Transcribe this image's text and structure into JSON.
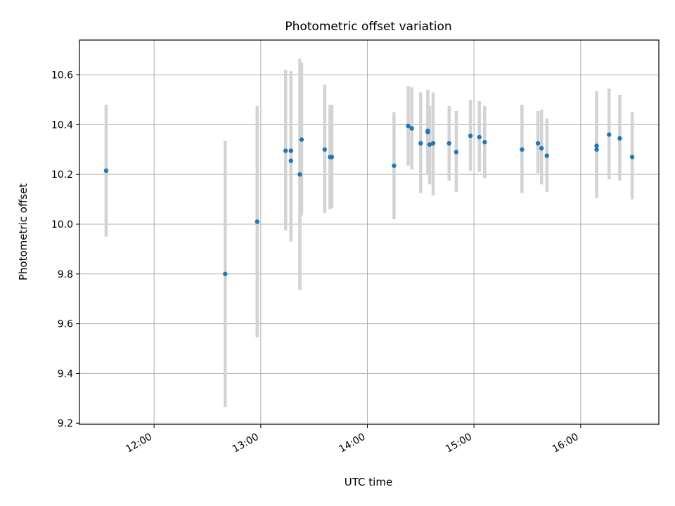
{
  "chart_data": {
    "type": "scatter",
    "title": "Photometric offset variation",
    "xlabel": "UTC time",
    "ylabel": "Photometric offset",
    "xlim": [
      "11:18",
      "16:44"
    ],
    "ylim": [
      9.195,
      10.74
    ],
    "grid": true,
    "legend": "none",
    "x_ticks": [
      "12:00",
      "13:00",
      "14:00",
      "15:00",
      "16:00"
    ],
    "y_ticks": [
      9.2,
      9.4,
      9.6,
      9.8,
      10.0,
      10.2,
      10.4,
      10.6
    ],
    "colors": {
      "marker": "#1f77b4",
      "errorbar": "#d3d3d3",
      "grid": "#b0b0b0"
    },
    "points": [
      {
        "x": "11:33",
        "y": 10.215,
        "low": 9.95,
        "high": 10.48
      },
      {
        "x": "12:40",
        "y": 9.8,
        "low": 9.265,
        "high": 10.335
      },
      {
        "x": "12:58",
        "y": 10.01,
        "low": 9.545,
        "high": 10.475
      },
      {
        "x": "13:14",
        "y": 10.295,
        "low": 9.975,
        "high": 10.62
      },
      {
        "x": "13:17",
        "y": 10.255,
        "low": 9.93,
        "high": 10.615
      },
      {
        "x": "13:17",
        "y": 10.295,
        "low": 9.98,
        "high": 10.61
      },
      {
        "x": "13:22",
        "y": 10.2,
        "low": 9.735,
        "high": 10.665
      },
      {
        "x": "13:23",
        "y": 10.34,
        "low": 10.035,
        "high": 10.65
      },
      {
        "x": "13:36",
        "y": 10.3,
        "low": 10.045,
        "high": 10.56
      },
      {
        "x": "13:39",
        "y": 10.27,
        "low": 10.06,
        "high": 10.48
      },
      {
        "x": "13:40",
        "y": 10.27,
        "low": 10.065,
        "high": 10.48
      },
      {
        "x": "14:15",
        "y": 10.235,
        "low": 10.02,
        "high": 10.45
      },
      {
        "x": "14:23",
        "y": 10.395,
        "low": 10.235,
        "high": 10.555
      },
      {
        "x": "14:25",
        "y": 10.385,
        "low": 10.22,
        "high": 10.55
      },
      {
        "x": "14:30",
        "y": 10.325,
        "low": 10.125,
        "high": 10.53
      },
      {
        "x": "14:34",
        "y": 10.375,
        "low": 10.205,
        "high": 10.54
      },
      {
        "x": "14:34",
        "y": 10.37,
        "low": 10.2,
        "high": 10.535
      },
      {
        "x": "14:35",
        "y": 10.32,
        "low": 10.16,
        "high": 10.475
      },
      {
        "x": "14:37",
        "y": 10.325,
        "low": 10.115,
        "high": 10.53
      },
      {
        "x": "14:46",
        "y": 10.325,
        "low": 10.175,
        "high": 10.475
      },
      {
        "x": "14:50",
        "y": 10.29,
        "low": 10.13,
        "high": 10.455
      },
      {
        "x": "14:58",
        "y": 10.355,
        "low": 10.215,
        "high": 10.5
      },
      {
        "x": "15:03",
        "y": 10.35,
        "low": 10.21,
        "high": 10.495
      },
      {
        "x": "15:06",
        "y": 10.33,
        "low": 10.185,
        "high": 10.475
      },
      {
        "x": "15:27",
        "y": 10.3,
        "low": 10.125,
        "high": 10.48
      },
      {
        "x": "15:36",
        "y": 10.325,
        "low": 10.205,
        "high": 10.455
      },
      {
        "x": "15:38",
        "y": 10.305,
        "low": 10.16,
        "high": 10.46
      },
      {
        "x": "15:41",
        "y": 10.275,
        "low": 10.13,
        "high": 10.425
      },
      {
        "x": "16:09",
        "y": 10.315,
        "low": 10.105,
        "high": 10.535
      },
      {
        "x": "16:09",
        "y": 10.3,
        "low": 10.15,
        "high": 10.455
      },
      {
        "x": "16:16",
        "y": 10.36,
        "low": 10.18,
        "high": 10.545
      },
      {
        "x": "16:22",
        "y": 10.345,
        "low": 10.175,
        "high": 10.52
      },
      {
        "x": "16:29",
        "y": 10.27,
        "low": 10.1,
        "high": 10.45
      }
    ]
  }
}
